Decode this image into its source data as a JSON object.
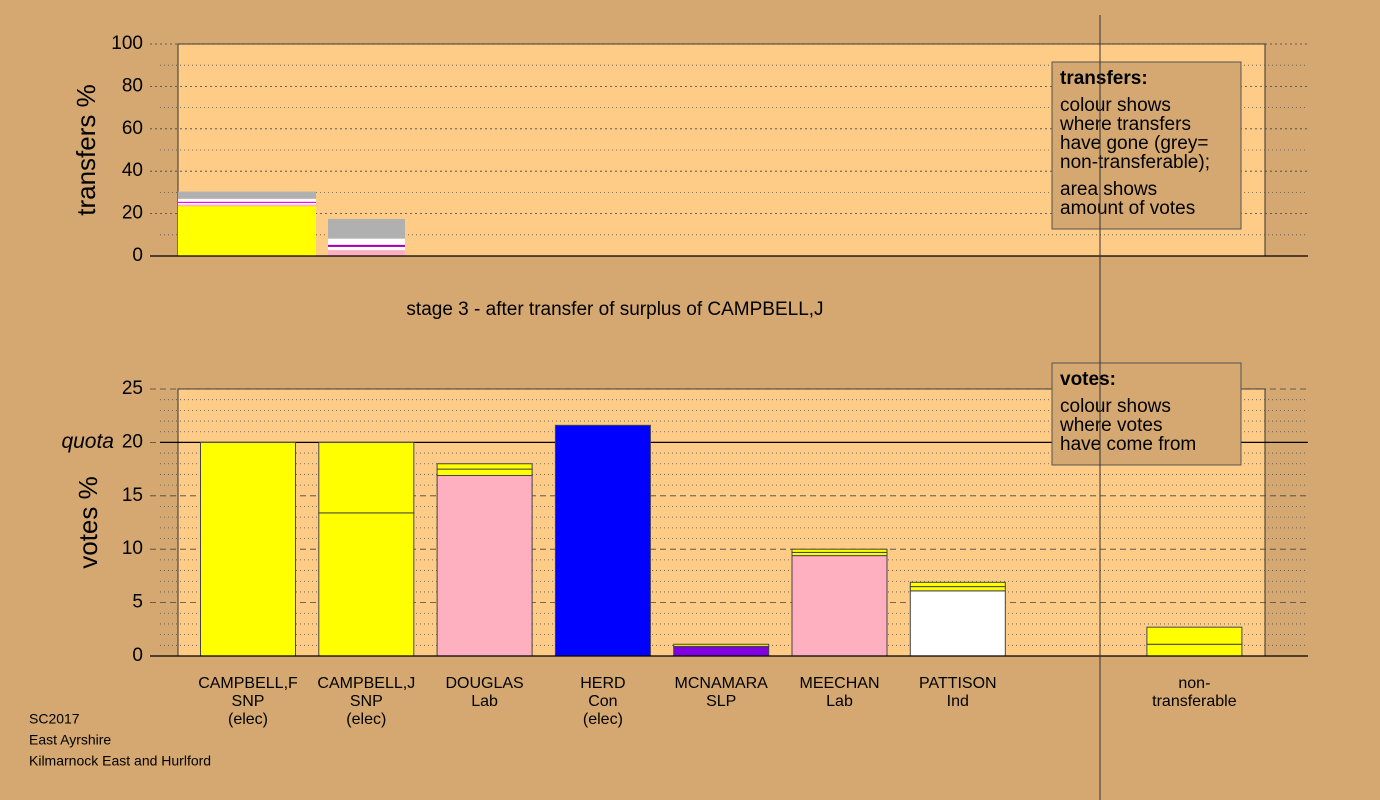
{
  "chart_data": [
    {
      "type": "stacked_bar",
      "y_label": "transfers %",
      "ylim": [
        0,
        100
      ],
      "yticks": [
        0,
        20,
        40,
        60,
        80,
        100
      ],
      "minor_yticks": [
        10,
        30,
        50,
        70,
        90
      ],
      "grid": true,
      "stacks": [
        {
          "values": [
            23.5,
            0.8,
            0.7,
            0.6,
            1.4,
            3.4
          ],
          "colors": [
            "#ffff00",
            "#ffb0c0",
            "#ffffff",
            "#ff00ff",
            "#ffffff",
            "#b0b0b0"
          ]
        },
        {
          "values": [
            2.8,
            1.5,
            1.0,
            2.9,
            9.3
          ],
          "colors": [
            "#ffb0c0",
            "#ffffff",
            "#a000c0",
            "#ffffff",
            "#b0b0b0"
          ]
        }
      ],
      "subtitle": "stage 3 - after transfer of surplus of CAMPBELL,J",
      "legend_title": "transfers:",
      "legend_text": [
        [
          "colour shows",
          "where transfers",
          "have gone (grey=",
          "non-transferable);"
        ],
        [
          "area shows",
          "amount of votes"
        ]
      ]
    },
    {
      "type": "stacked_bar",
      "y_label": "votes %",
      "ylim": [
        0,
        25
      ],
      "yticks": [
        0,
        5,
        10,
        15,
        20,
        25
      ],
      "minor_yticks": [
        1,
        2,
        3,
        4,
        6,
        7,
        8,
        9,
        11,
        12,
        13,
        14,
        16,
        17,
        18,
        19,
        21,
        22,
        23,
        24
      ],
      "grid": true,
      "quota": {
        "value": 20,
        "label": "quota"
      },
      "categories": [
        [
          "CAMPBELL,F",
          "SNP",
          "(elec)"
        ],
        [
          "CAMPBELL,J",
          "SNP",
          "(elec)"
        ],
        [
          "DOUGLAS",
          "Lab"
        ],
        [
          "HERD",
          "Con",
          "(elec)"
        ],
        [
          "MCNAMARA",
          "SLP"
        ],
        [
          "MEECHAN",
          "Lab"
        ],
        [
          "PATTISON",
          "Ind"
        ],
        [
          "non-",
          "transferable"
        ]
      ],
      "stacks": [
        {
          "values": [
            20
          ],
          "colors": [
            "#ffff00"
          ]
        },
        {
          "values": [
            13.4,
            6.6
          ],
          "colors": [
            "#ffff00",
            "#ffff00"
          ]
        },
        {
          "values": [
            16.9,
            0.6,
            0.5
          ],
          "colors": [
            "#ffb0c0",
            "#ffff00",
            "#ffff00"
          ]
        },
        {
          "values": [
            21.6
          ],
          "colors": [
            "#0000ff"
          ]
        },
        {
          "values": [
            0.9,
            0.2
          ],
          "colors": [
            "#8000e0",
            "#ffff00"
          ]
        },
        {
          "values": [
            9.4,
            0.3,
            0.3
          ],
          "colors": [
            "#ffb0c0",
            "#ffff00",
            "#ffff00"
          ]
        },
        {
          "values": [
            6.1,
            0.4,
            0.4
          ],
          "colors": [
            "#ffffff",
            "#ffff00",
            "#ffff00"
          ]
        },
        {
          "values": [
            1.1,
            1.6
          ],
          "colors": [
            "#ffff00",
            "#ffff00"
          ]
        }
      ],
      "legend_title": "votes:",
      "legend_text": [
        [
          "colour shows",
          "where votes",
          "have come from"
        ]
      ]
    }
  ],
  "footer": [
    "SC2017",
    "East Ayrshire",
    "Kilmarnock East and Hurlford"
  ]
}
